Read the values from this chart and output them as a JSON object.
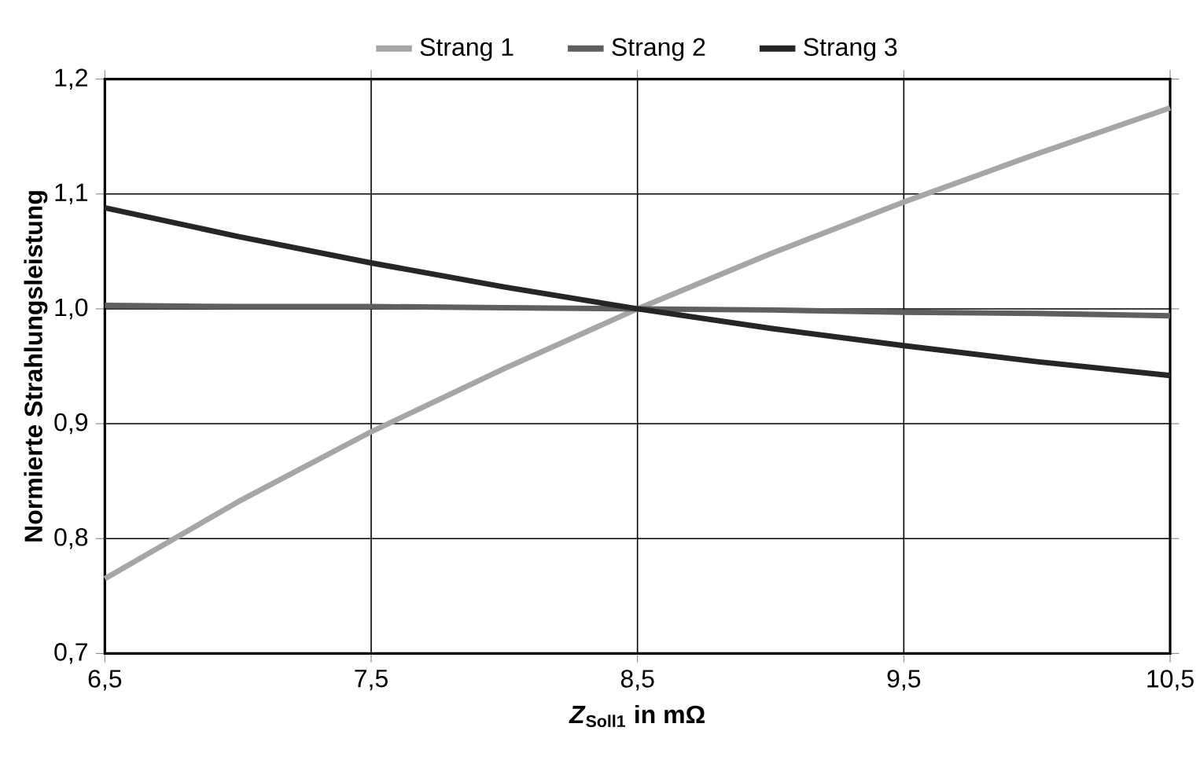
{
  "chart_data": {
    "type": "line",
    "xlabel": "*Z*$_{Soll1}$ in mΩ",
    "ylabel": "Normierte Strahlungsleistung",
    "x": [
      6.5,
      7.0,
      7.5,
      8.0,
      8.5,
      9.0,
      9.5,
      10.0,
      10.5
    ],
    "series": [
      {
        "name": "Strang 1",
        "color": "#a6a6a6",
        "values": [
          0.765,
          0.832,
          0.893,
          0.948,
          1.0,
          1.048,
          1.093,
          1.135,
          1.175
        ]
      },
      {
        "name": "Strang 2",
        "color": "#5f5f5f",
        "values": [
          1.003,
          1.002,
          1.002,
          1.001,
          1.0,
          0.999,
          0.997,
          0.996,
          0.994
        ]
      },
      {
        "name": "Strang 3",
        "color": "#262626",
        "values": [
          1.088,
          1.063,
          1.04,
          1.019,
          1.0,
          0.983,
          0.968,
          0.954,
          0.942
        ]
      }
    ],
    "xlim": [
      6.5,
      10.5
    ],
    "ylim": [
      0.7,
      1.2
    ],
    "xticks": [
      {
        "value": 6.5,
        "label": "6,5"
      },
      {
        "value": 7.5,
        "label": "7,5"
      },
      {
        "value": 8.5,
        "label": "8,5"
      },
      {
        "value": 9.5,
        "label": "9,5"
      },
      {
        "value": 10.5,
        "label": "10,5"
      }
    ],
    "yticks": [
      {
        "value": 0.7,
        "label": "0,7"
      },
      {
        "value": 0.8,
        "label": "0,8"
      },
      {
        "value": 0.9,
        "label": "0,9"
      },
      {
        "value": 1.0,
        "label": "1,0"
      },
      {
        "value": 1.1,
        "label": "1,1"
      },
      {
        "value": 1.2,
        "label": "1,2"
      }
    ],
    "grid": true,
    "legend": "top",
    "marker": "none",
    "line_style": "solid"
  }
}
